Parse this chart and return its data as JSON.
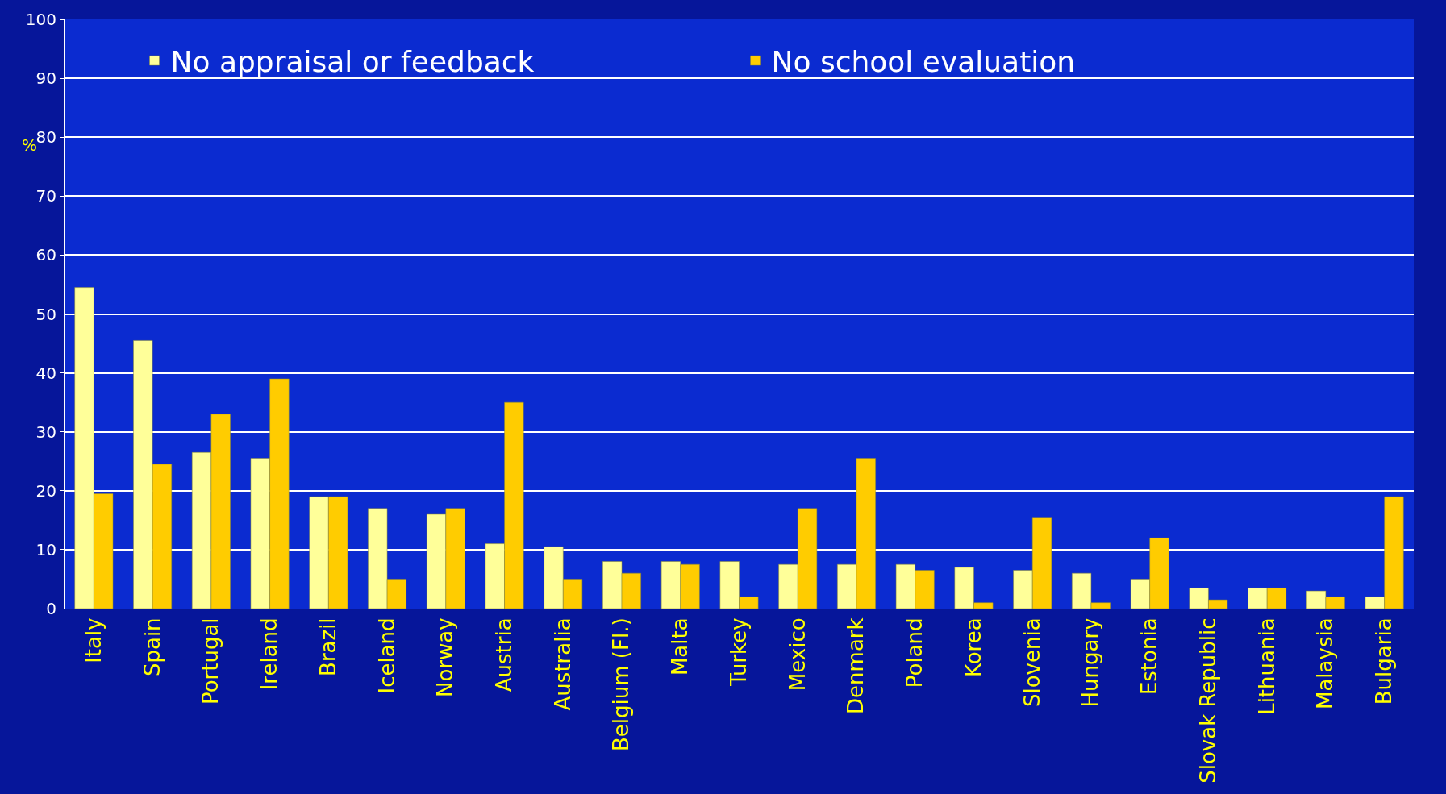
{
  "chart_data": {
    "type": "bar",
    "ylabel": "%",
    "categories": [
      "Italy",
      "Spain",
      "Portugal",
      "Ireland",
      "Brazil",
      "Iceland",
      "Norway",
      "Austria",
      "Australia",
      "Belgium (Fl.)",
      "Malta",
      "Turkey",
      "Mexico",
      "Denmark",
      "Poland",
      "Korea",
      "Slovenia",
      "Hungary",
      "Estonia",
      "Slovak Republic",
      "Lithuania",
      "Malaysia",
      "Bulgaria"
    ],
    "series": [
      {
        "name": "No appraisal or feedback",
        "color": "#ffff99",
        "values": [
          54.5,
          45.5,
          26.5,
          25.5,
          19,
          17,
          16,
          11,
          10.5,
          8,
          8,
          8,
          7.5,
          7.5,
          7.5,
          7,
          6.5,
          6,
          5,
          3.5,
          3.5,
          3,
          2
        ]
      },
      {
        "name": "No school evaluation",
        "color": "#ffcc00",
        "values": [
          19.5,
          24.5,
          33,
          39,
          19,
          5,
          17,
          35,
          5,
          6,
          7.5,
          2,
          17,
          25.5,
          6.5,
          1,
          15.5,
          1,
          12,
          1.5,
          3.5,
          2,
          19
        ]
      }
    ],
    "ylim": [
      0,
      100
    ],
    "yticks": [
      0,
      10,
      20,
      30,
      40,
      50,
      60,
      70,
      80,
      90,
      100
    ],
    "grid": "y",
    "legend": "top"
  }
}
